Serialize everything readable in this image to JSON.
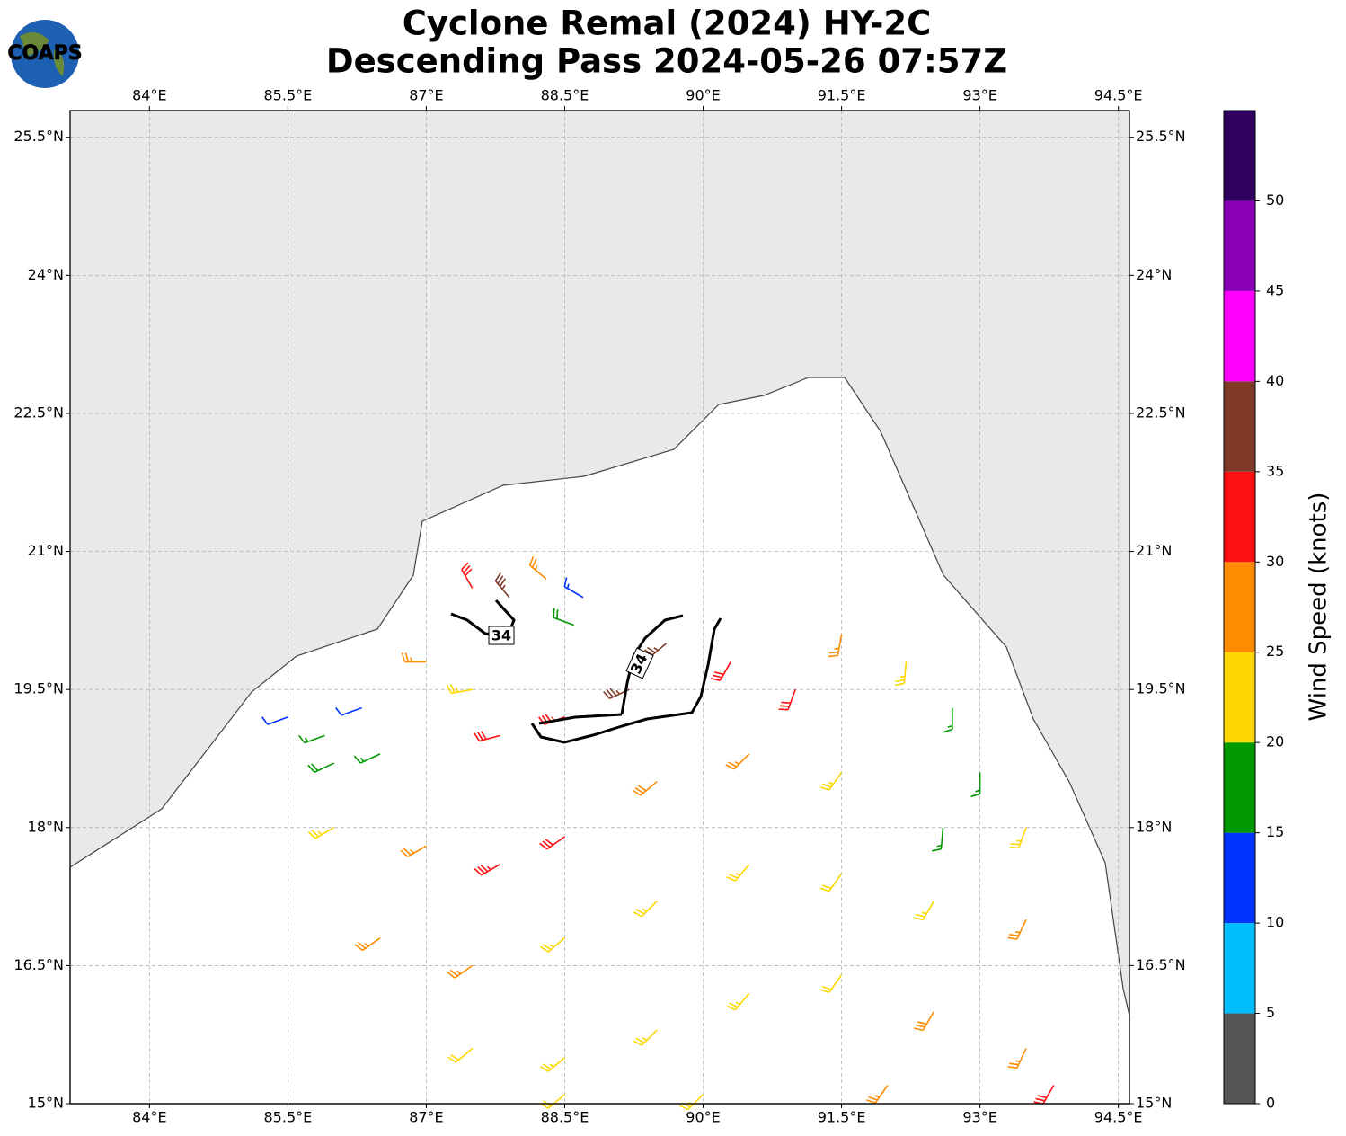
{
  "chart_data": {
    "type": "barbs",
    "title": [
      "Cyclone Remal (2024) HY-2C",
      "Descending Pass 2024-05-26 07:57Z"
    ],
    "logo": "COAPS",
    "xlim": [
      83.14,
      94.62
    ],
    "ylim": [
      15,
      25.79
    ],
    "xticks": [
      {
        "value": 84,
        "label": "84°E"
      },
      {
        "value": 85.5,
        "label": "85.5°E"
      },
      {
        "value": 87,
        "label": "87°E"
      },
      {
        "value": 88.5,
        "label": "88.5°E"
      },
      {
        "value": 90,
        "label": "90°E"
      },
      {
        "value": 91.5,
        "label": "91.5°E"
      },
      {
        "value": 93,
        "label": "93°E"
      },
      {
        "value": 94.5,
        "label": "94.5°E"
      }
    ],
    "yticks": [
      {
        "value": 15,
        "label": "15°N"
      },
      {
        "value": 16.5,
        "label": "16.5°N"
      },
      {
        "value": 18,
        "label": "18°N"
      },
      {
        "value": 19.5,
        "label": "19.5°N"
      },
      {
        "value": 21,
        "label": "21°N"
      },
      {
        "value": 22.5,
        "label": "22.5°N"
      },
      {
        "value": 24,
        "label": "24°N"
      },
      {
        "value": 25.5,
        "label": "25.5°N"
      }
    ],
    "grid": true,
    "contour_level": 34,
    "barbs": {
      "lon": [
        87.5,
        87.9,
        88.3,
        88.7,
        88.6,
        85.5,
        85.9,
        86.3,
        86.0,
        86.5,
        87.0,
        87.5,
        87.8,
        88.5,
        89.2,
        89.6,
        90.3,
        91.0,
        91.5,
        92.2,
        92.7,
        93.0,
        92.6,
        93.5,
        86.0,
        87.0,
        87.8,
        88.5,
        89.5,
        90.5,
        91.5,
        86.5,
        87.5,
        88.5,
        89.5,
        90.5,
        91.5,
        92.5,
        93.5,
        87.5,
        88.5,
        89.5,
        90.5,
        91.5,
        92.5,
        93.5,
        88.5,
        90.0,
        92.0,
        93.8
      ],
      "lat": [
        20.6,
        20.5,
        20.7,
        20.5,
        20.2,
        19.2,
        19.0,
        19.3,
        18.7,
        18.8,
        19.8,
        19.5,
        19.0,
        19.2,
        19.5,
        20.0,
        19.8,
        19.5,
        20.1,
        19.8,
        19.3,
        18.6,
        18.0,
        18.0,
        18.0,
        17.8,
        17.6,
        17.9,
        18.5,
        18.8,
        18.6,
        16.8,
        16.5,
        16.8,
        17.2,
        17.6,
        17.5,
        17.2,
        17.0,
        15.6,
        15.5,
        15.8,
        16.2,
        16.4,
        16.0,
        15.6,
        15.1,
        15.1,
        15.2,
        15.2
      ],
      "speed": [
        32,
        36,
        27,
        14,
        18,
        12,
        17,
        12,
        18,
        17,
        27,
        23,
        32,
        33,
        37,
        36,
        32,
        31,
        27,
        23,
        17,
        16,
        17,
        23,
        24,
        27,
        33,
        31,
        28,
        27,
        24,
        27,
        26,
        24,
        23,
        23,
        22,
        24,
        26,
        22,
        23,
        23,
        24,
        22,
        28,
        27,
        22,
        23,
        27,
        32
      ],
      "direction": [
        330,
        320,
        310,
        300,
        290,
        250,
        250,
        250,
        245,
        245,
        270,
        260,
        255,
        250,
        245,
        230,
        210,
        200,
        190,
        185,
        180,
        180,
        185,
        200,
        240,
        240,
        240,
        235,
        230,
        225,
        215,
        235,
        235,
        230,
        225,
        220,
        215,
        210,
        205,
        230,
        230,
        225,
        220,
        215,
        210,
        205,
        230,
        225,
        215,
        210
      ]
    },
    "colorbar": {
      "label": "Wind Speed (knots)",
      "bounds": [
        0,
        5,
        10,
        15,
        20,
        25,
        30,
        35,
        40,
        45,
        50,
        55
      ],
      "colors": [
        "#555555",
        "#00bfff",
        "#0033ff",
        "#009900",
        "#ffd700",
        "#ff8c00",
        "#ff1010",
        "#7f3a2a",
        "#ff00ff",
        "#8a00b8",
        "#300060"
      ],
      "ticks": [
        0,
        5,
        10,
        15,
        20,
        25,
        30,
        35,
        40,
        45,
        50
      ]
    }
  }
}
